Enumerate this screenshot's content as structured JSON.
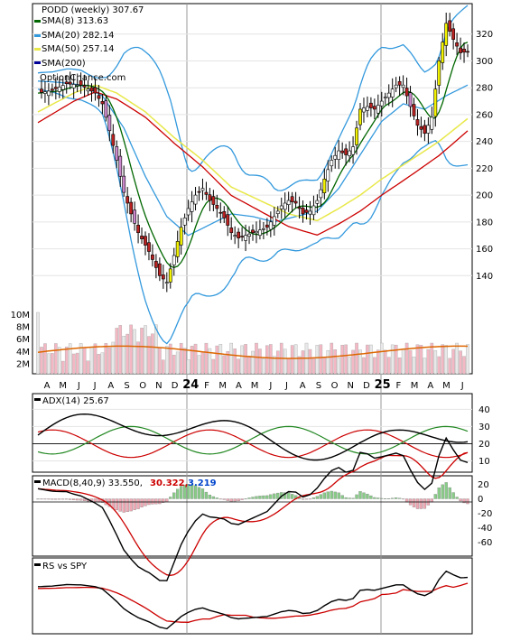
{
  "chart_data": [
    {
      "type": "candlestick",
      "title": "PODD (weekly) 307.67",
      "source": "OptionChance.com",
      "legend": [
        {
          "label": "SMA(8) 313.63",
          "color": "#006600"
        },
        {
          "label": "SMA(20) 282.14",
          "color": "#3399dd"
        },
        {
          "label": "SMA(50) 257.14",
          "color": "#e8e84a"
        },
        {
          "label": "SMA(200)",
          "color": "#000099"
        }
      ],
      "y_ticks": [
        "320",
        "300",
        "280",
        "260",
        "240",
        "220",
        "200",
        "180",
        "160",
        "140"
      ],
      "ylim": [
        118,
        340
      ],
      "close_series": [
        {
          "x": 0,
          "y": 276
        },
        {
          "x": 4,
          "y": 278
        },
        {
          "x": 8,
          "y": 283
        },
        {
          "x": 12,
          "y": 282
        },
        {
          "x": 16,
          "y": 276
        },
        {
          "x": 18,
          "y": 268
        },
        {
          "x": 20,
          "y": 248
        },
        {
          "x": 22,
          "y": 226
        },
        {
          "x": 24,
          "y": 202
        },
        {
          "x": 26,
          "y": 186
        },
        {
          "x": 28,
          "y": 172
        },
        {
          "x": 31,
          "y": 158
        },
        {
          "x": 34,
          "y": 140
        },
        {
          "x": 36,
          "y": 135
        },
        {
          "x": 38,
          "y": 155
        },
        {
          "x": 40,
          "y": 176
        },
        {
          "x": 42,
          "y": 190
        },
        {
          "x": 44,
          "y": 200
        },
        {
          "x": 46,
          "y": 205
        },
        {
          "x": 48,
          "y": 196
        },
        {
          "x": 50,
          "y": 190
        },
        {
          "x": 52,
          "y": 183
        },
        {
          "x": 54,
          "y": 172
        },
        {
          "x": 56,
          "y": 168
        },
        {
          "x": 58,
          "y": 170
        },
        {
          "x": 60,
          "y": 172
        },
        {
          "x": 62,
          "y": 174
        },
        {
          "x": 64,
          "y": 176
        },
        {
          "x": 66,
          "y": 184
        },
        {
          "x": 68,
          "y": 192
        },
        {
          "x": 70,
          "y": 196
        },
        {
          "x": 72,
          "y": 194
        },
        {
          "x": 74,
          "y": 186
        },
        {
          "x": 76,
          "y": 188
        },
        {
          "x": 78,
          "y": 196
        },
        {
          "x": 80,
          "y": 212
        },
        {
          "x": 82,
          "y": 226
        },
        {
          "x": 84,
          "y": 233
        },
        {
          "x": 86,
          "y": 230
        },
        {
          "x": 88,
          "y": 236
        },
        {
          "x": 90,
          "y": 264
        },
        {
          "x": 92,
          "y": 266
        },
        {
          "x": 94,
          "y": 264
        },
        {
          "x": 96,
          "y": 270
        },
        {
          "x": 98,
          "y": 276
        },
        {
          "x": 100,
          "y": 282
        },
        {
          "x": 102,
          "y": 282
        },
        {
          "x": 104,
          "y": 266
        },
        {
          "x": 106,
          "y": 252
        },
        {
          "x": 108,
          "y": 246
        },
        {
          "x": 110,
          "y": 258
        },
        {
          "x": 112,
          "y": 300
        },
        {
          "x": 114,
          "y": 328
        },
        {
          "x": 116,
          "y": 316
        },
        {
          "x": 118,
          "y": 306
        },
        {
          "x": 120,
          "y": 307
        }
      ],
      "sma_20_series": [
        {
          "x": 0,
          "y": 285
        },
        {
          "x": 6,
          "y": 284
        },
        {
          "x": 12,
          "y": 282
        },
        {
          "x": 18,
          "y": 274
        },
        {
          "x": 24,
          "y": 250
        },
        {
          "x": 30,
          "y": 214
        },
        {
          "x": 36,
          "y": 184
        },
        {
          "x": 42,
          "y": 170
        },
        {
          "x": 48,
          "y": 178
        },
        {
          "x": 54,
          "y": 186
        },
        {
          "x": 60,
          "y": 184
        },
        {
          "x": 66,
          "y": 180
        },
        {
          "x": 72,
          "y": 184
        },
        {
          "x": 78,
          "y": 188
        },
        {
          "x": 84,
          "y": 205
        },
        {
          "x": 90,
          "y": 230
        },
        {
          "x": 96,
          "y": 255
        },
        {
          "x": 102,
          "y": 268
        },
        {
          "x": 108,
          "y": 264
        },
        {
          "x": 114,
          "y": 274
        },
        {
          "x": 120,
          "y": 282
        }
      ],
      "sma_50_series": [
        {
          "x": 0,
          "y": 262
        },
        {
          "x": 10,
          "y": 276
        },
        {
          "x": 16,
          "y": 282
        },
        {
          "x": 22,
          "y": 276
        },
        {
          "x": 30,
          "y": 262
        },
        {
          "x": 38,
          "y": 243
        },
        {
          "x": 46,
          "y": 226
        },
        {
          "x": 54,
          "y": 206
        },
        {
          "x": 62,
          "y": 196
        },
        {
          "x": 70,
          "y": 186
        },
        {
          "x": 78,
          "y": 181
        },
        {
          "x": 84,
          "y": 190
        },
        {
          "x": 90,
          "y": 200
        },
        {
          "x": 96,
          "y": 212
        },
        {
          "x": 104,
          "y": 226
        },
        {
          "x": 112,
          "y": 240
        },
        {
          "x": 120,
          "y": 257
        }
      ],
      "volume_y_ticks": [
        "10M",
        "8M",
        "6M",
        "4M",
        "2M"
      ],
      "x_tick_labels": [
        "A",
        "M",
        "J",
        "J",
        "A",
        "S",
        "O",
        "N",
        "D",
        "24",
        "F",
        "M",
        "A",
        "M",
        "J",
        "J",
        "A",
        "S",
        "O",
        "N",
        "D",
        "25",
        "F",
        "M",
        "A",
        "M",
        "J"
      ]
    },
    {
      "type": "line",
      "title": "ADX(14) 25.67",
      "y_ticks": [
        "40",
        "30",
        "20",
        "10"
      ],
      "ylim": [
        5,
        47
      ]
    },
    {
      "type": "line",
      "title": "MACD(8,40,9) 33.550,",
      "values_label": [
        "30.322,",
        "3.219"
      ],
      "value_colors": [
        "#cc0000",
        "#0044cc"
      ],
      "y_ticks": [
        "20",
        "0",
        "-20",
        "-40",
        "-60"
      ],
      "ylim": [
        -74,
        28
      ]
    },
    {
      "type": "line",
      "title": "RS vs SPY"
    }
  ]
}
